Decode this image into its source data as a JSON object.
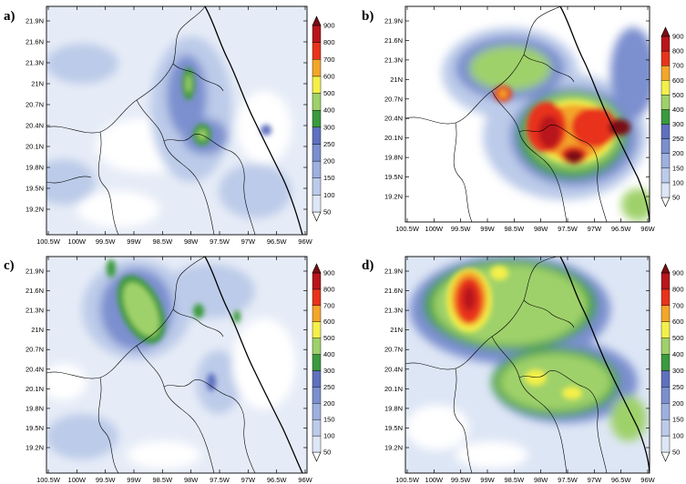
{
  "figure": {
    "colorbar": {
      "levels": [
        "50",
        "100",
        "150",
        "200",
        "250",
        "300",
        "400",
        "500",
        "600",
        "700",
        "800",
        "900"
      ],
      "colors": [
        "#ffffff",
        "#dde6f5",
        "#bccbe9",
        "#9db0de",
        "#7b8fcf",
        "#5f70bf",
        "#3a9a3e",
        "#9fd16a",
        "#f4f04a",
        "#f4a62a",
        "#e8331c",
        "#b8161b",
        "#7a0e12"
      ]
    },
    "axes": {
      "x_ticks": [
        "100.5W",
        "100W",
        "99.5W",
        "99W",
        "98.5W",
        "98W",
        "97.5W",
        "97W",
        "96.5W",
        "96W"
      ],
      "y_ticks": [
        "19.2N",
        "19.5N",
        "19.8N",
        "20.1N",
        "20.4N",
        "20.7N",
        "21N",
        "21.3N",
        "21.6N",
        "21.9N"
      ]
    },
    "panels": [
      {
        "id": "a",
        "letter": "a)"
      },
      {
        "id": "b",
        "letter": "b)"
      },
      {
        "id": "c",
        "letter": "c)"
      },
      {
        "id": "d",
        "letter": "d)"
      }
    ]
  }
}
